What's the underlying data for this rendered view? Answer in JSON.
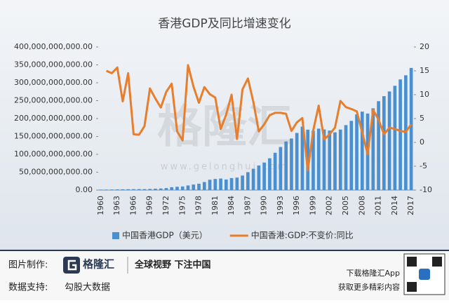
{
  "chart_data": {
    "type": "bar_line",
    "title": "香港GDP及同比增速变化",
    "categories": [
      "1960",
      null,
      null,
      "1963",
      null,
      null,
      "1966",
      null,
      null,
      "1969",
      null,
      null,
      "1972",
      null,
      null,
      "1975",
      null,
      null,
      "1978",
      null,
      null,
      "1981",
      null,
      null,
      "1984",
      null,
      null,
      "1987",
      null,
      null,
      "1990",
      null,
      null,
      "1993",
      null,
      null,
      "1996",
      null,
      null,
      "1999",
      null,
      null,
      "2002",
      null,
      null,
      "2005",
      null,
      null,
      "2008",
      null,
      null,
      "2011",
      null,
      null,
      "2014",
      null,
      null,
      "2017"
    ],
    "series": [
      {
        "name": "中国香港GDP（美元）",
        "color": "#4a8fd0",
        "type": "bar",
        "values": [
          1320000000,
          1410000000,
          1620000000,
          1920000000,
          2210000000,
          2440000000,
          2610000000,
          2760000000,
          2710000000,
          3190000000,
          3800000000,
          4460000000,
          5650000000,
          8030000000,
          9250000000,
          10050000000,
          12920000000,
          15500000000,
          17700000000,
          22500000000,
          28900000000,
          31000000000,
          32300000000,
          29500000000,
          33500000000,
          35000000000,
          40600000000,
          50100000000,
          59700000000,
          68800000000,
          76900000000,
          88900000000,
          104300000000,
          120400000000,
          135800000000,
          144200000000,
          159700000000,
          177400000000,
          168900000000,
          165800000000,
          171700000000,
          169400000000,
          166300000000,
          161400000000,
          169100000000,
          181600000000,
          193500000000,
          211600000000,
          219300000000,
          214000000000,
          228600000000,
          248500000000,
          262600000000,
          275700000000,
          291500000000,
          309400000000,
          320900000000,
          341400000000
        ]
      },
      {
        "name": "中国香港:GDP:不变价:同比",
        "color": "#e67e2e",
        "type": "line",
        "axis": "y2",
        "values": [
          null,
          15.0,
          14.5,
          15.7,
          8.6,
          14.5,
          1.7,
          1.6,
          3.4,
          11.3,
          9.2,
          7.3,
          10.6,
          12.3,
          2.3,
          0.4,
          16.2,
          11.7,
          8.3,
          11.6,
          10.1,
          9.4,
          2.8,
          5.8,
          10.0,
          0.7,
          11.1,
          13.4,
          8.5,
          2.3,
          3.8,
          5.7,
          6.2,
          6.2,
          6.0,
          2.4,
          4.2,
          5.1,
          -5.9,
          2.5,
          7.7,
          0.6,
          1.7,
          3.1,
          8.7,
          7.4,
          7.0,
          6.5,
          2.1,
          -2.5,
          6.8,
          4.8,
          1.7,
          3.1,
          2.8,
          2.4,
          2.2,
          3.8
        ]
      }
    ],
    "ylim": [
      0,
      400000000000
    ],
    "yticks": [
      {
        "value": 0,
        "label": "0.00"
      },
      {
        "value": 50000000000,
        "label": "50,000,000,000.00"
      },
      {
        "value": 100000000000,
        "label": "100,000,000,000.00"
      },
      {
        "value": 150000000000,
        "label": "150,000,000,000.00"
      },
      {
        "value": 200000000000,
        "label": "200,000,000,000.00"
      },
      {
        "value": 250000000000,
        "label": "250,000,000,000.00"
      },
      {
        "value": 300000000000,
        "label": "300,000,000,000.00"
      },
      {
        "value": 350000000000,
        "label": "350,000,000,000.00"
      },
      {
        "value": 400000000000,
        "label": "400,000,000,000.00"
      }
    ],
    "y2lim": [
      -10,
      20
    ],
    "y2ticks": [
      -10,
      -5,
      0,
      5,
      10,
      15,
      20
    ],
    "legend": "bottom"
  },
  "watermark": {
    "name": "格隆汇",
    "url": "www.gelonghui.com"
  },
  "footer": {
    "made_by": "图片制作:",
    "brand": "格隆汇",
    "slogan": "全球视野 下注中国",
    "data_by": "数据支持:",
    "data_source": "勾股大数据",
    "download": "下载格隆汇App",
    "more": "获取更多精彩内容"
  }
}
